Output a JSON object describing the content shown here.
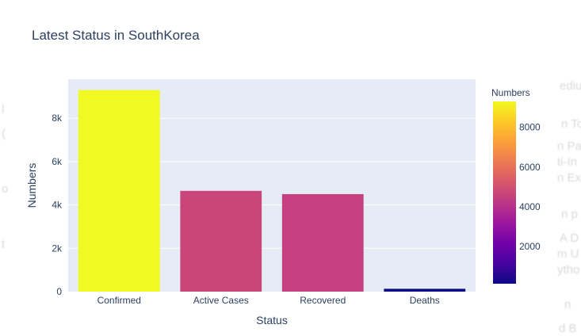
{
  "background_fragments": [
    "edium",
    "n To",
    "n Pa",
    "ti-In",
    "n Ex",
    "n p",
    "A D",
    "m U",
    "ytho",
    "n",
    "d B",
    "l",
    "(",
    "o",
    "t"
  ],
  "chart_data": {
    "type": "bar",
    "title": "Latest Status in SouthKorea",
    "xlabel": "Status",
    "ylabel": "Numbers",
    "categories": [
      "Confirmed",
      "Active Cases",
      "Recovered",
      "Deaths"
    ],
    "values": [
      9300,
      4650,
      4500,
      130
    ],
    "ylim": [
      0,
      9800
    ],
    "yticks": [
      0,
      2000,
      4000,
      6000,
      8000
    ],
    "ytick_labels": [
      "0",
      "2k",
      "4k",
      "6k",
      "8k"
    ],
    "grid": true,
    "colorbar": {
      "title": "Numbers",
      "range": [
        130,
        9300
      ],
      "ticks": [
        2000,
        4000,
        6000,
        8000
      ],
      "tick_labels": [
        "2000",
        "4000",
        "6000",
        "8000"
      ],
      "colorscale": [
        "#0d0887",
        "#46039f",
        "#7201a8",
        "#9c179e",
        "#bd3786",
        "#d8576b",
        "#ed7953",
        "#fb9f3a",
        "#fdca26",
        "#f0f921"
      ]
    },
    "colors": {
      "plot_bg": "#e5ecf6",
      "grid": "#ffffff",
      "text": "#2a3f5f"
    }
  }
}
